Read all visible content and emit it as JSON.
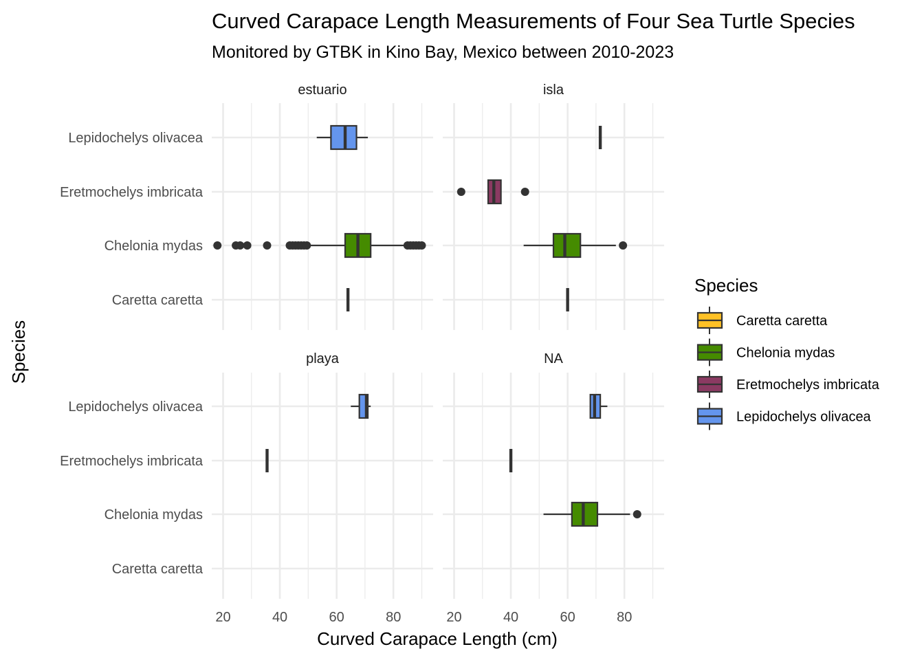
{
  "chart_data": {
    "type": "boxplot",
    "title": "Curved Carapace Length Measurements of Four Sea Turtle Species",
    "subtitle": "Monitored by GTBK in Kino Bay, Mexico between 2010-2023",
    "xlabel": "Curved Carapace Length (cm)",
    "ylabel": "Species",
    "xlim": [
      16,
      94
    ],
    "x_ticks": [
      20,
      40,
      60,
      80
    ],
    "grid": true,
    "legend": {
      "title": "Species",
      "position": "right",
      "entries": [
        {
          "label": "Caretta caretta",
          "color": "#FFC125"
        },
        {
          "label": "Chelonia mydas",
          "color": "#458B00"
        },
        {
          "label": "Eretmochelys imbricata",
          "color": "#8B3A62"
        },
        {
          "label": "Lepidochelys olivacea",
          "color": "#6495ED"
        }
      ]
    },
    "categories": [
      "Caretta caretta",
      "Chelonia mydas",
      "Eretmochelys imbricata",
      "Lepidochelys olivacea"
    ],
    "panels": [
      {
        "label": "estuario",
        "boxes": [
          {
            "species": "Caretta caretta",
            "min": 64,
            "q1": 64,
            "median": 64,
            "q3": 64,
            "max": 64,
            "outliers": []
          },
          {
            "species": "Chelonia mydas",
            "min": 50,
            "q1": 63,
            "median": 67.5,
            "q3": 72,
            "max": 84,
            "outliers": [
              18,
              24.5,
              26,
              28.5,
              35.5,
              43.5,
              44.5,
              45.5,
              46.5,
              47.5,
              48.5,
              49.5,
              85,
              86,
              87,
              88,
              89,
              90
            ]
          },
          {
            "species": "Lepidochelys olivacea",
            "min": 53,
            "q1": 58,
            "median": 63,
            "q3": 67,
            "max": 71,
            "outliers": []
          }
        ]
      },
      {
        "label": "isla",
        "boxes": [
          {
            "species": "Caretta caretta",
            "min": 60,
            "q1": 60,
            "median": 60,
            "q3": 60,
            "max": 60,
            "outliers": []
          },
          {
            "species": "Chelonia mydas",
            "min": 44.5,
            "q1": 55,
            "median": 59,
            "q3": 64.5,
            "max": 77,
            "outliers": [
              79.5
            ]
          },
          {
            "species": "Eretmochelys imbricata",
            "min": 32,
            "q1": 32,
            "median": 34,
            "q3": 36.5,
            "max": 36.5,
            "outliers": [
              22.5,
              45
            ]
          },
          {
            "species": "Lepidochelys olivacea",
            "min": 71.5,
            "q1": 71.5,
            "median": 71.5,
            "q3": 71.5,
            "max": 71.5,
            "outliers": []
          }
        ]
      },
      {
        "label": "playa",
        "boxes": [
          {
            "species": "Eretmochelys imbricata",
            "min": 35.5,
            "q1": 35.5,
            "median": 35.5,
            "q3": 35.5,
            "max": 35.5,
            "outliers": []
          },
          {
            "species": "Lepidochelys olivacea",
            "min": 65,
            "q1": 68,
            "median": 70.5,
            "q3": 71,
            "max": 72,
            "outliers": []
          }
        ]
      },
      {
        "label": "NA",
        "boxes": [
          {
            "species": "Chelonia mydas",
            "min": 51.5,
            "q1": 61.5,
            "median": 65.5,
            "q3": 70.5,
            "max": 82,
            "outliers": [
              84.5
            ]
          },
          {
            "species": "Eretmochelys imbricata",
            "min": 40,
            "q1": 40,
            "median": 40,
            "q3": 40,
            "max": 40,
            "outliers": []
          },
          {
            "species": "Lepidochelys olivacea",
            "min": 68,
            "q1": 68,
            "median": 69.5,
            "q3": 71.5,
            "max": 74,
            "outliers": []
          }
        ]
      }
    ]
  }
}
